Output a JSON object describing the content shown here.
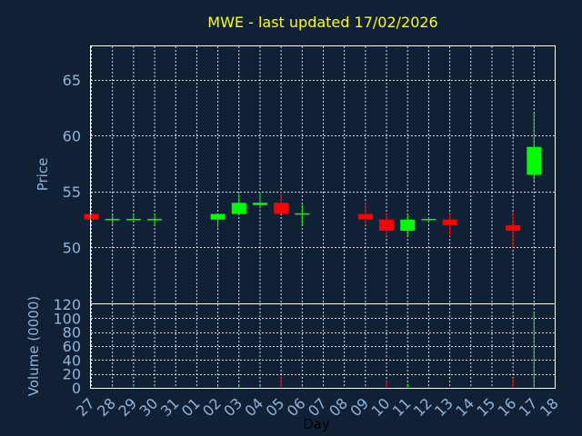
{
  "chart_data": {
    "type": "candlestick",
    "title": "MWE - last updated 17/02/2026",
    "xlabel": "Day",
    "price_ylabel": "Price",
    "volume_ylabel": "Volume (0000)",
    "x_ticks": [
      "27",
      "28",
      "29",
      "30",
      "31",
      "01",
      "02",
      "03",
      "04",
      "05",
      "06",
      "07",
      "08",
      "09",
      "10",
      "11",
      "12",
      "13",
      "14",
      "15",
      "16",
      "17",
      "18"
    ],
    "price_ylim": [
      45,
      68
    ],
    "price_yticks": [
      50,
      55,
      60,
      65
    ],
    "volume_ylim": [
      0,
      120
    ],
    "volume_yticks": [
      0,
      20,
      40,
      60,
      80,
      100,
      120
    ],
    "grid": true,
    "colors": {
      "background": "#102035",
      "up": "#00ff00",
      "down": "#ff0000",
      "title": "#ffff00",
      "axis_text": "#8fb4d8",
      "grid": "#ffffff"
    },
    "candles": [
      {
        "day": "27",
        "open": 53.0,
        "high": 53.0,
        "low": 52.5,
        "close": 52.5,
        "volume": 0
      },
      {
        "day": "28",
        "open": 52.5,
        "high": 53.0,
        "low": 52.0,
        "close": 52.5,
        "volume": 1
      },
      {
        "day": "29",
        "open": 52.5,
        "high": 53.0,
        "low": 52.5,
        "close": 52.5,
        "volume": 1
      },
      {
        "day": "30",
        "open": 52.5,
        "high": 53.0,
        "low": 52.0,
        "close": 52.5,
        "volume": 1
      },
      {
        "day": "02",
        "open": 52.5,
        "high": 53.0,
        "low": 51.8,
        "close": 53.0,
        "volume": 2
      },
      {
        "day": "03",
        "open": 53.0,
        "high": 54.8,
        "low": 53.0,
        "close": 54.0,
        "volume": 3
      },
      {
        "day": "04",
        "open": 53.8,
        "high": 55.0,
        "low": 53.5,
        "close": 54.0,
        "volume": 2
      },
      {
        "day": "05",
        "open": 54.0,
        "high": 55.0,
        "low": 53.0,
        "close": 53.0,
        "volume": 18
      },
      {
        "day": "06",
        "open": 53.0,
        "high": 53.8,
        "low": 52.0,
        "close": 53.0,
        "volume": 1
      },
      {
        "day": "09",
        "open": 53.0,
        "high": 54.0,
        "low": 52.0,
        "close": 52.5,
        "volume": 2
      },
      {
        "day": "10",
        "open": 52.5,
        "high": 53.0,
        "low": 51.0,
        "close": 51.5,
        "volume": 10
      },
      {
        "day": "11",
        "open": 51.5,
        "high": 53.0,
        "low": 51.0,
        "close": 52.5,
        "volume": 6
      },
      {
        "day": "12",
        "open": 52.5,
        "high": 52.7,
        "low": 52.2,
        "close": 52.5,
        "volume": 1
      },
      {
        "day": "13",
        "open": 52.5,
        "high": 53.0,
        "low": 51.0,
        "close": 52.0,
        "volume": 1
      },
      {
        "day": "16",
        "open": 52.0,
        "high": 53.2,
        "low": 50.0,
        "close": 51.5,
        "volume": 14
      },
      {
        "day": "17",
        "open": 56.5,
        "high": 62.0,
        "low": 56.0,
        "close": 59.0,
        "volume": 110
      }
    ]
  }
}
